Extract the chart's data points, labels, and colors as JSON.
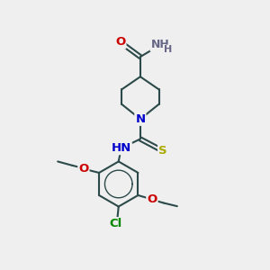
{
  "bg_color": "#efefef",
  "bond_color": "#2d4a4a",
  "bond_width": 1.5,
  "atom_colors": {
    "O": "#cc0000",
    "N": "#0000cc",
    "S": "#aaaa00",
    "Cl": "#008800",
    "C": "#2d4a4a",
    "H": "#666688"
  },
  "font_size": 9.5,
  "fig_size": [
    3.0,
    3.0
  ],
  "dpi": 100
}
